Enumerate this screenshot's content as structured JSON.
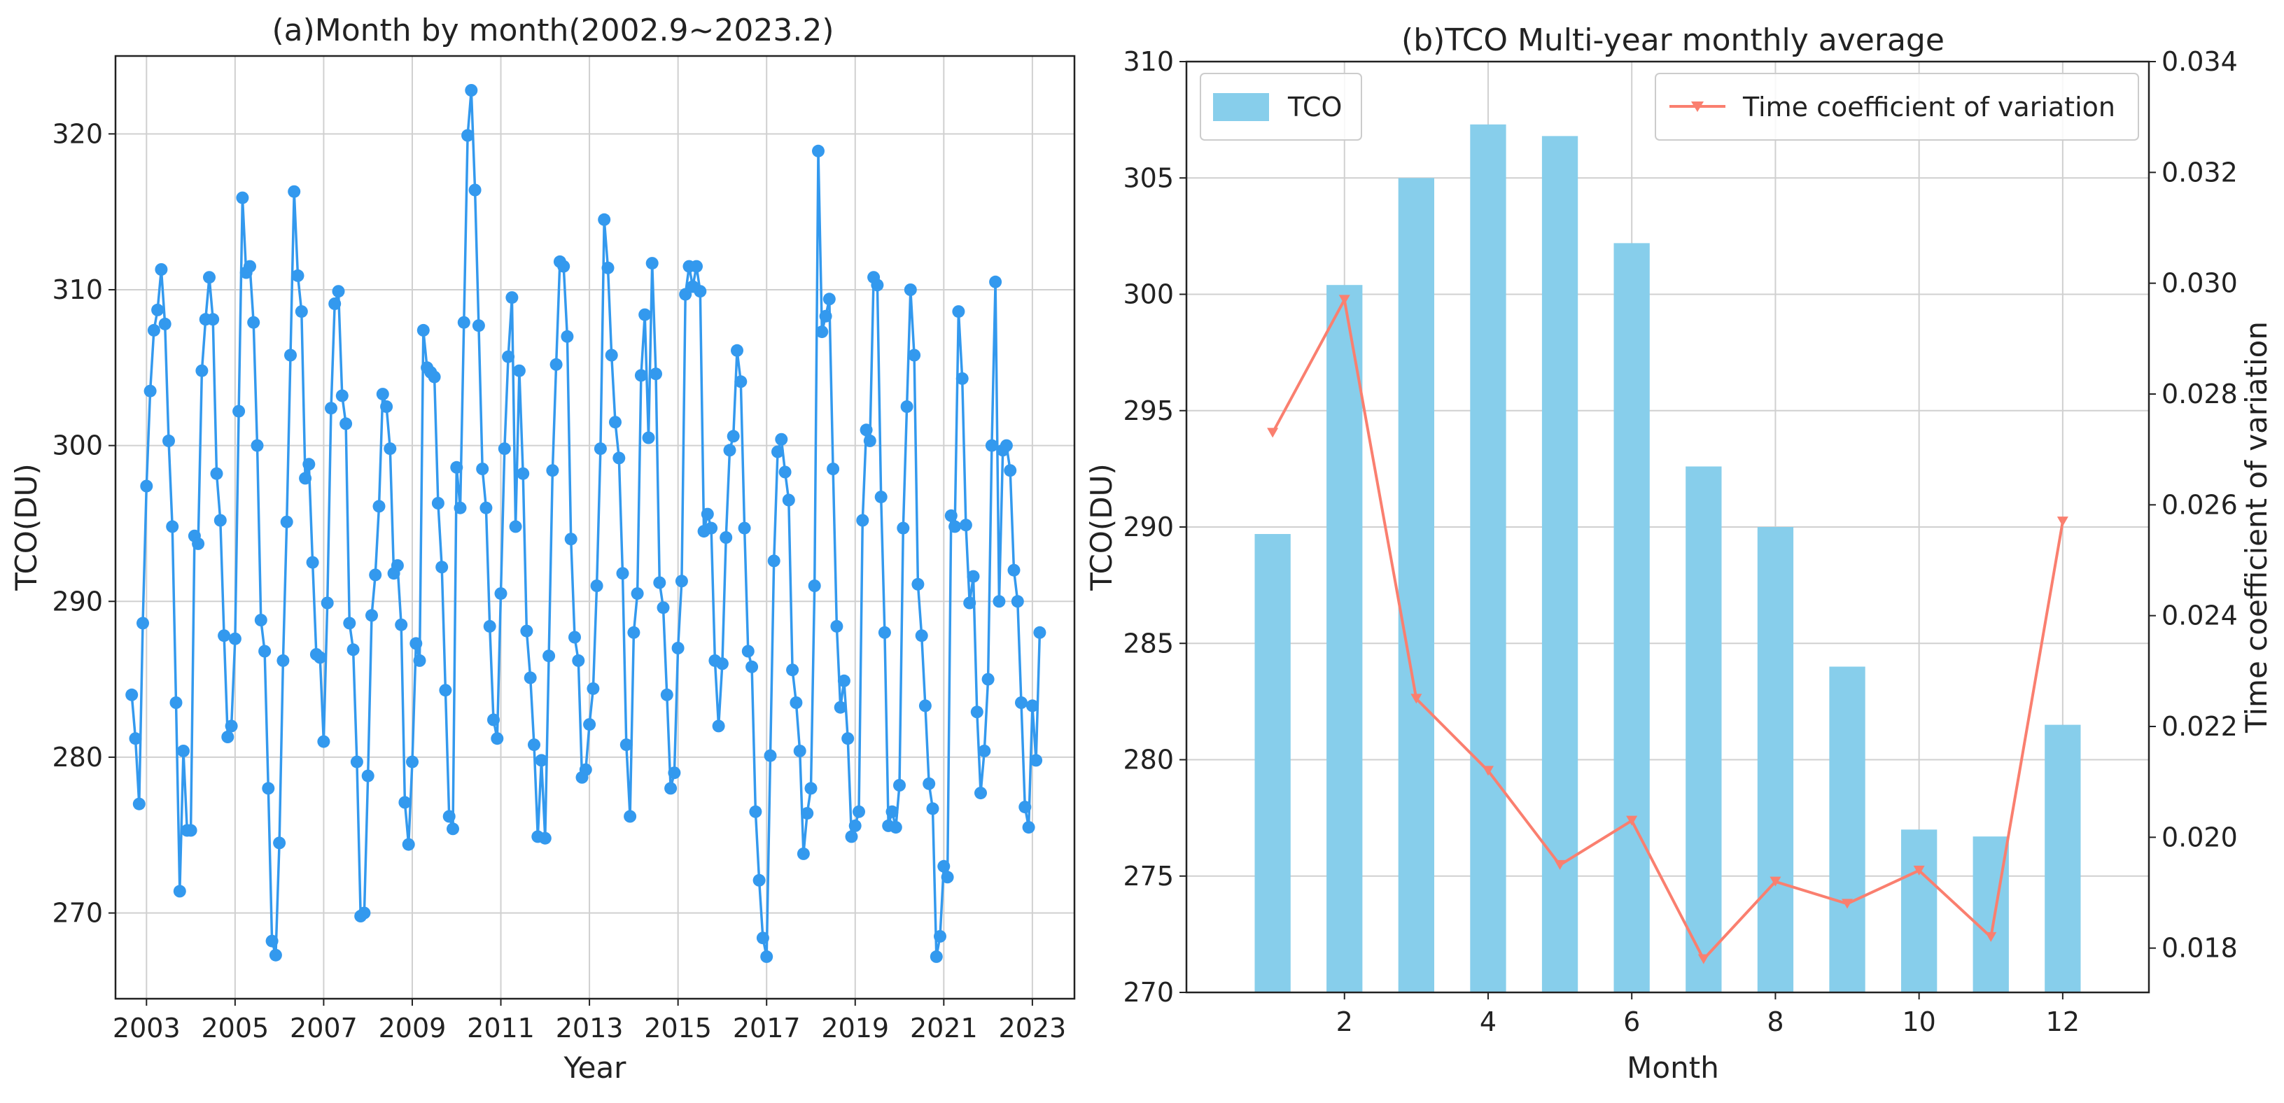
{
  "chart_data": [
    {
      "type": "line",
      "title": "(a)Month by month(2002.9~2023.2)",
      "xlabel": "Year",
      "ylabel": "TCO(DU)",
      "xlim": [
        2002.3,
        2023.95
      ],
      "ylim": [
        264.5,
        325
      ],
      "xticks": [
        2003,
        2005,
        2007,
        2009,
        2011,
        2013,
        2015,
        2017,
        2019,
        2021,
        2023
      ],
      "yticks": [
        270,
        280,
        290,
        300,
        310,
        320
      ],
      "grid": true,
      "line_color": "#3399ee",
      "start": 2002.667,
      "step": 0.08333,
      "values": [
        284.0,
        281.2,
        277.0,
        288.6,
        297.4,
        303.5,
        307.4,
        308.7,
        311.3,
        307.8,
        300.3,
        294.8,
        283.5,
        271.4,
        280.4,
        275.3,
        275.3,
        294.2,
        293.7,
        304.8,
        308.1,
        310.8,
        308.1,
        298.2,
        295.2,
        287.8,
        281.3,
        282.0,
        287.6,
        302.2,
        315.9,
        311.1,
        311.5,
        307.9,
        300.0,
        288.8,
        286.8,
        278.0,
        268.2,
        267.3,
        274.5,
        286.2,
        295.1,
        305.8,
        316.3,
        310.9,
        308.6,
        297.9,
        298.8,
        292.5,
        286.6,
        286.4,
        281.0,
        289.9,
        302.4,
        309.1,
        309.9,
        303.2,
        301.4,
        288.6,
        286.9,
        279.7,
        269.8,
        270.0,
        278.8,
        289.1,
        291.7,
        296.1,
        303.3,
        302.5,
        299.8,
        291.8,
        292.3,
        288.5,
        277.1,
        274.4,
        279.7,
        287.3,
        286.2,
        307.4,
        305.0,
        304.7,
        304.4,
        296.3,
        292.2,
        284.3,
        276.2,
        275.4,
        298.6,
        296.0,
        307.9,
        319.9,
        322.8,
        316.4,
        307.7,
        298.5,
        296.0,
        288.4,
        282.4,
        281.2,
        290.5,
        299.8,
        305.7,
        309.5,
        294.8,
        304.8,
        298.2,
        288.1,
        285.1,
        280.8,
        274.9,
        279.8,
        274.8,
        286.5,
        298.4,
        305.2,
        311.8,
        311.5,
        307.0,
        294.0,
        287.7,
        286.2,
        278.7,
        279.2,
        282.1,
        284.4,
        291.0,
        299.8,
        314.5,
        311.4,
        305.8,
        301.5,
        299.2,
        291.8,
        280.8,
        276.2,
        288.0,
        290.5,
        304.5,
        308.4,
        300.5,
        311.7,
        304.6,
        291.2,
        289.6,
        284.0,
        278.0,
        279.0,
        287.0,
        291.3,
        309.7,
        311.5,
        310.2,
        311.5,
        309.9,
        294.5,
        295.6,
        294.7,
        286.2,
        282.0,
        286.0,
        294.1,
        299.7,
        300.6,
        306.1,
        304.1,
        294.7,
        286.8,
        285.8,
        276.5,
        272.1,
        268.4,
        267.2,
        280.1,
        292.6,
        299.6,
        300.4,
        298.3,
        296.5,
        285.6,
        283.5,
        280.4,
        273.8,
        276.4,
        278.0,
        291.0,
        318.9,
        307.3,
        308.3,
        309.4,
        298.5,
        288.4,
        283.2,
        284.9,
        281.2,
        274.9,
        275.6,
        276.5,
        295.2,
        301.0,
        300.3,
        310.8,
        310.3,
        296.7,
        288.0,
        275.6,
        276.5,
        275.5,
        278.2,
        294.7,
        302.5,
        310.0,
        305.8,
        291.1,
        287.8,
        283.3,
        278.3,
        276.7,
        267.2,
        268.5,
        273.0,
        272.3,
        295.5,
        294.8,
        308.6,
        304.3,
        294.9,
        289.9,
        291.6,
        282.9,
        277.7,
        280.4,
        285.0,
        300.0,
        310.5,
        290.0,
        299.7,
        300.0,
        298.4,
        292.0,
        290.0,
        283.5,
        276.8,
        275.5,
        283.3,
        279.8,
        288.0
      ]
    },
    {
      "type": "bar",
      "title": "(b)TCO Multi-year monthly average",
      "xlabel": "Month",
      "ylabel": "TCO(DU)",
      "y2label": "Time coefficient of variation",
      "categories": [
        1,
        2,
        3,
        4,
        5,
        6,
        7,
        8,
        9,
        10,
        11,
        12
      ],
      "xticks": [
        2,
        4,
        6,
        8,
        10,
        12
      ],
      "xlim": [
        -0.2,
        13.2
      ],
      "ylim": [
        270,
        310
      ],
      "yticks": [
        270,
        275,
        280,
        285,
        290,
        295,
        300,
        305,
        310
      ],
      "y2lim": [
        0.0172,
        0.034
      ],
      "y2ticks": [
        "0.018",
        "0.020",
        "0.022",
        "0.024",
        "0.026",
        "0.028",
        "0.030",
        "0.032",
        "0.034"
      ],
      "grid": true,
      "legend_placement": [
        "top-left",
        "top-right"
      ],
      "series": [
        {
          "name": "TCO",
          "kind": "bar",
          "axis": "left",
          "color": "#87ceeb",
          "values": [
            289.7,
            300.4,
            305.0,
            307.3,
            306.8,
            302.2,
            292.6,
            290.0,
            284.0,
            277.0,
            276.7,
            281.5
          ]
        },
        {
          "name": "Time coefficient of variation",
          "kind": "line",
          "axis": "right",
          "color": "#fa7f6f",
          "marker": "down-triangle",
          "values": [
            0.0273,
            0.0297,
            0.0225,
            0.0212,
            0.0195,
            0.0203,
            0.0178,
            0.0192,
            0.0188,
            0.0194,
            0.0182,
            0.0257
          ]
        }
      ]
    }
  ]
}
